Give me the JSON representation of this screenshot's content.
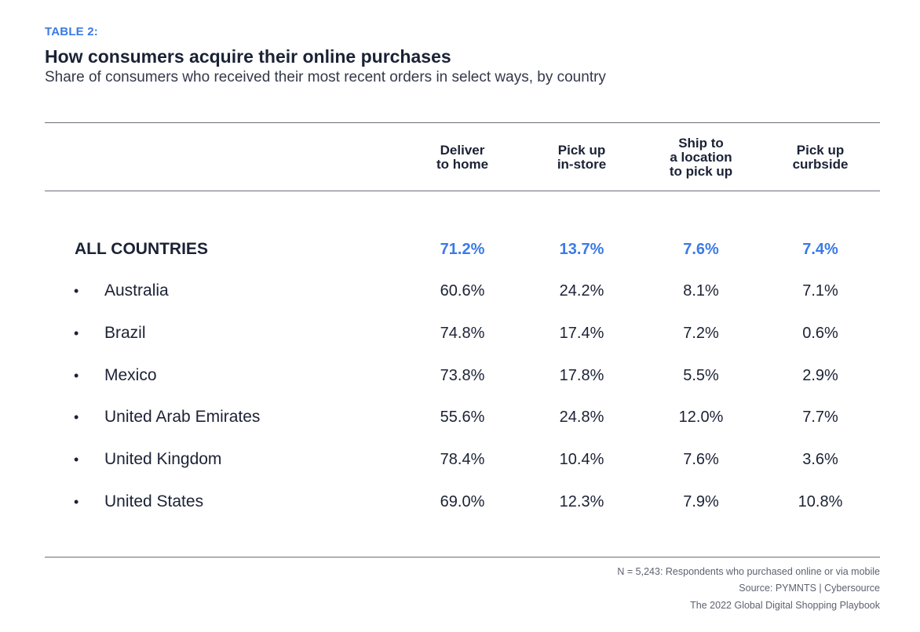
{
  "table_label": "TABLE 2:",
  "title": "How consumers acquire their online purchases",
  "subtitle": "Share of consumers who received their most recent orders in select ways, by country",
  "chart_data": {
    "type": "table",
    "title": "How consumers acquire their online purchases",
    "subtitle": "Share of consumers who received their most recent orders in select ways, by country",
    "columns": [
      {
        "lines": [
          "Deliver",
          "to home"
        ]
      },
      {
        "lines": [
          "Pick up",
          "in-store"
        ]
      },
      {
        "lines": [
          "Ship to",
          "a location",
          "to pick up"
        ]
      },
      {
        "lines": [
          "Pick up",
          "curbside"
        ]
      }
    ],
    "rows": [
      {
        "label": "ALL COUNTRIES",
        "total": true,
        "values": [
          "71.2%",
          "13.7%",
          "7.6%",
          "7.4%"
        ]
      },
      {
        "label": "Australia",
        "total": false,
        "values": [
          "60.6%",
          "24.2%",
          "8.1%",
          "7.1%"
        ]
      },
      {
        "label": "Brazil",
        "total": false,
        "values": [
          "74.8%",
          "17.4%",
          "7.2%",
          "0.6%"
        ]
      },
      {
        "label": "Mexico",
        "total": false,
        "values": [
          "73.8%",
          "17.8%",
          "5.5%",
          "2.9%"
        ]
      },
      {
        "label": "United Arab Emirates",
        "total": false,
        "values": [
          "55.6%",
          "24.8%",
          "12.0%",
          "7.7%"
        ]
      },
      {
        "label": "United Kingdom",
        "total": false,
        "values": [
          "78.4%",
          "10.4%",
          "7.6%",
          "3.6%"
        ]
      },
      {
        "label": "United States",
        "total": false,
        "values": [
          "69.0%",
          "12.3%",
          "7.9%",
          "10.8%"
        ]
      }
    ],
    "bullet": "•"
  },
  "notes": [
    "N = 5,243: Respondents who purchased online or via mobile",
    "Source: PYMNTS | Cybersource",
    "The 2022 Global Digital Shopping Playbook"
  ],
  "colors": {
    "accent": "#3b7ae6",
    "text": "#1b2235",
    "rule": "#6a6e78"
  }
}
